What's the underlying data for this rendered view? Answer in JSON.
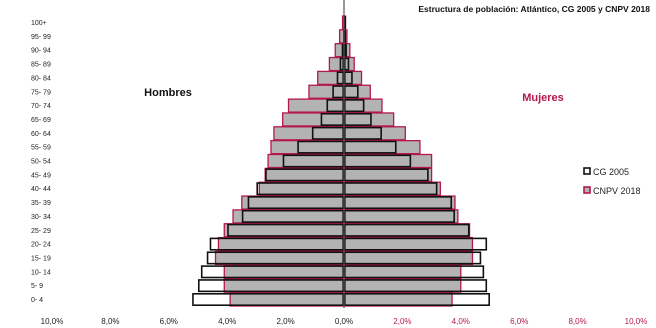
{
  "chart_data": {
    "type": "bar",
    "title": "Estructura de población: Atlántico, CG 2005 y CNPV 2018",
    "categories": [
      "0- 4",
      "5- 9",
      "10- 14",
      "15- 19",
      "20- 24",
      "25- 29",
      "30- 34",
      "35- 39",
      "40- 44",
      "45- 49",
      "50- 54",
      "55- 59",
      "60- 64",
      "65- 69",
      "70- 74",
      "75- 79",
      "80- 84",
      "85- 89",
      "90- 94",
      "95- 99",
      "100+"
    ],
    "side_labels": {
      "men": "Hombres",
      "women": "Mujeres"
    },
    "x_ticks": [
      "10,0%",
      "8,0%",
      "6,0%",
      "4,0%",
      "2,0%",
      "0,0%",
      "2,0%",
      "4,0%",
      "6,0%",
      "8,0%",
      "10,0%"
    ],
    "xlim": [
      -10,
      10
    ],
    "series": [
      {
        "name": "CG 2005",
        "sex": "men",
        "values": [
          5.2,
          5.0,
          4.9,
          4.7,
          4.6,
          4.0,
          3.5,
          3.3,
          3.0,
          2.7,
          2.1,
          1.6,
          1.1,
          0.8,
          0.6,
          0.4,
          0.25,
          0.15,
          0.08,
          0.03,
          0.01
        ]
      },
      {
        "name": "CG 2005",
        "sex": "women",
        "values": [
          5.0,
          4.9,
          4.8,
          4.7,
          4.9,
          4.3,
          3.8,
          3.7,
          3.2,
          2.9,
          2.3,
          1.8,
          1.3,
          0.95,
          0.7,
          0.5,
          0.3,
          0.18,
          0.1,
          0.04,
          0.01
        ]
      },
      {
        "name": "CNPV 2018",
        "sex": "men",
        "values": [
          3.9,
          4.1,
          4.1,
          4.4,
          4.3,
          4.1,
          3.8,
          3.5,
          2.9,
          2.7,
          2.6,
          2.5,
          2.4,
          2.1,
          1.9,
          1.2,
          0.9,
          0.5,
          0.3,
          0.15,
          0.05
        ]
      },
      {
        "name": "CNPV 2018",
        "sex": "women",
        "values": [
          3.7,
          4.0,
          4.0,
          4.4,
          4.4,
          4.3,
          3.9,
          3.8,
          3.3,
          3.0,
          3.0,
          2.6,
          2.1,
          1.7,
          1.3,
          0.9,
          0.6,
          0.35,
          0.2,
          0.1,
          0.05
        ]
      }
    ],
    "legend": [
      "CG 2005",
      "CNPV 2018"
    ],
    "legend_position": "right",
    "colors": {
      "cg2005_border": "#111111",
      "cnpv2018_fill": "#b3b3b3",
      "cnpv2018_border": "#b5174f",
      "women_label": "#b5174f",
      "tick_left": "#222222",
      "tick_right": "#b5174f",
      "center_line": "#555555"
    }
  }
}
